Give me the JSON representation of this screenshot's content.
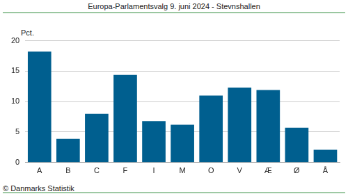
{
  "chart_data": {
    "type": "bar",
    "title": "Europa-Parlamentsvalg 9. juni 2024 - Stevnshallen",
    "ylabel": "Pct.",
    "annotations": [
      "© Danmarks Statistik"
    ],
    "categories": [
      "A",
      "B",
      "C",
      "F",
      "I",
      "M",
      "O",
      "V",
      "Æ",
      "Ø",
      "Å"
    ],
    "values": [
      18.2,
      3.9,
      8.0,
      14.4,
      6.8,
      6.2,
      11.0,
      12.3,
      11.9,
      5.7,
      2.1
    ],
    "color": "#005f8f",
    "ylim": [
      0,
      20
    ],
    "yticks": [
      0,
      5,
      10,
      15,
      20
    ],
    "grid": true
  }
}
